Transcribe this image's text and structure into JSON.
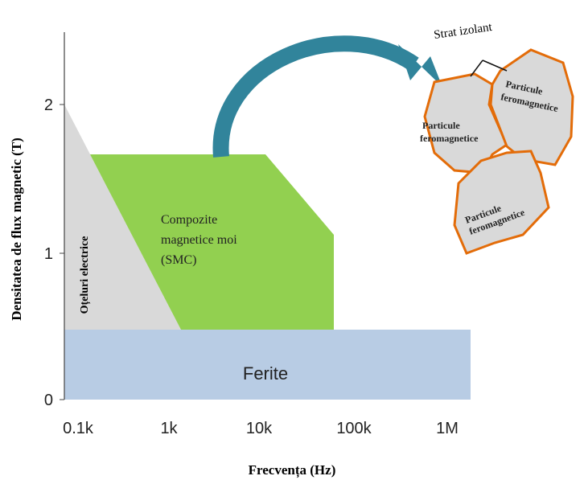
{
  "axes": {
    "y_label": "Densitatea de flux magnetic (T)",
    "x_label": "Frecvența (Hz)",
    "y_ticks": [
      "0",
      "1",
      "2"
    ],
    "x_ticks": [
      "0.1k",
      "1k",
      "10k",
      "100k",
      "1M"
    ]
  },
  "regions": {
    "ferite": "Ferite",
    "steel": "Oțeluri electrice",
    "smc": [
      "Compozite",
      "magnetice moi",
      "(SMC)"
    ]
  },
  "inset": {
    "insulation": "Strat izolant",
    "particles": [
      [
        "Particule",
        "feromagnetice"
      ],
      [
        "Particule",
        "feromagnetice"
      ],
      [
        "Particule",
        "feromagnetice"
      ]
    ]
  }
}
